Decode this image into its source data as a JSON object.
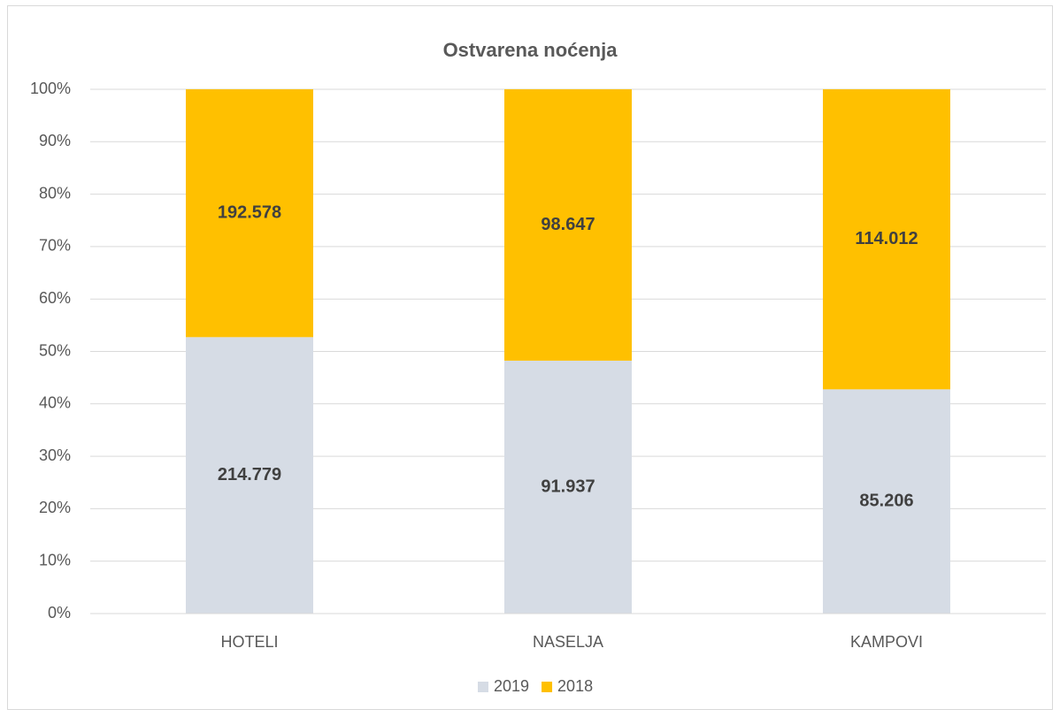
{
  "chart_data": {
    "type": "bar",
    "stack": "percent",
    "title": "Ostvarena noćenja",
    "categories": [
      "HOTELI",
      "NASELJA",
      "KAMPOVI"
    ],
    "series": [
      {
        "name": "2019",
        "color": "#d6dce5",
        "values": [
          214779,
          91937,
          85206
        ],
        "value_labels": [
          "214.779",
          "91.937",
          "85.206"
        ]
      },
      {
        "name": "2018",
        "color": "#ffc000",
        "values": [
          192578,
          98647,
          114012
        ],
        "value_labels": [
          "192.578",
          "98.647",
          "114.012"
        ]
      }
    ],
    "ylim": [
      0,
      100
    ],
    "yticks": [
      {
        "value": 0,
        "label": "0%"
      },
      {
        "value": 10,
        "label": "10%"
      },
      {
        "value": 20,
        "label": "20%"
      },
      {
        "value": 30,
        "label": "30%"
      },
      {
        "value": 40,
        "label": "40%"
      },
      {
        "value": 50,
        "label": "50%"
      },
      {
        "value": 60,
        "label": "60%"
      },
      {
        "value": 70,
        "label": "70%"
      },
      {
        "value": 80,
        "label": "80%"
      },
      {
        "value": 90,
        "label": "90%"
      },
      {
        "value": 100,
        "label": "100%"
      }
    ],
    "grid": true,
    "legend": "bottom"
  }
}
